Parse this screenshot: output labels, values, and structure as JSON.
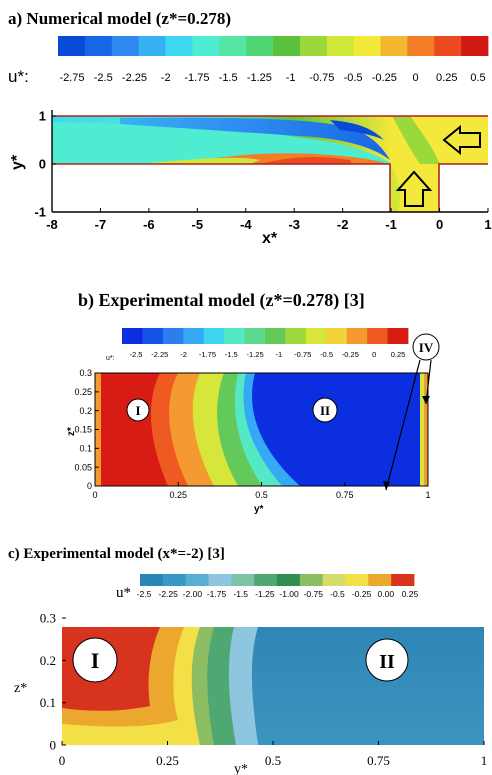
{
  "panels": [
    {
      "title": "a) Numerical model (z*=0.278)",
      "colorbar": {
        "label": "u*:",
        "ticks": [
          "-2.75",
          "-2.5",
          "-2.25",
          "-2",
          "-1.75",
          "-1.5",
          "-1.25",
          "-1",
          "-0.75",
          "-0.5",
          "-0.25",
          "0",
          "0.25",
          "0.5"
        ],
        "colors": [
          "#0a4ad8",
          "#1666e6",
          "#2d88f0",
          "#36b2f4",
          "#3ed9f0",
          "#4eecd0",
          "#55e6a6",
          "#4fd573",
          "#5cc23e",
          "#9bd83a",
          "#cfe838",
          "#f4e83a",
          "#f4b730",
          "#f47e27",
          "#ea4a1d",
          "#d11a14"
        ]
      },
      "x_axis": {
        "label": "x*",
        "ticks": [
          "-8",
          "-7",
          "-6",
          "-5",
          "-4",
          "-3",
          "-2",
          "-1",
          "0",
          "1"
        ]
      },
      "y_axis": {
        "label": "y*",
        "ticks": [
          "-1",
          "0",
          "1"
        ]
      }
    },
    {
      "title": "b) Experimental model (z*=0.278) [3]",
      "colorbar": {
        "label": "u*:",
        "ticks": [
          "-2.5",
          "-2.25",
          "-2",
          "-1.75",
          "-1.5",
          "-1.25",
          "-1",
          "-0.75",
          "-0.5",
          "-0.25",
          "0",
          "0.25"
        ],
        "colors": [
          "#0a2ee0",
          "#1452ea",
          "#2c7df0",
          "#36a9f4",
          "#3ed4f0",
          "#55e8c4",
          "#5cd98e",
          "#63c95a",
          "#9dd83c",
          "#d6e63a",
          "#f4d23a",
          "#f49a30",
          "#ee5a22",
          "#d81c14"
        ]
      },
      "x_axis": {
        "label": "y*",
        "ticks": [
          "0",
          "0.25",
          "0.5",
          "0.75",
          "1"
        ]
      },
      "y_axis": {
        "label": "z*",
        "ticks": [
          "0",
          "0.05",
          "0.1",
          "0.15",
          "0.2",
          "0.25",
          "0.3"
        ]
      },
      "regions": [
        "I",
        "II",
        "IV"
      ]
    },
    {
      "title": "c) Experimental model (x*=-2) [3]",
      "colorbar": {
        "label": "u*",
        "ticks": [
          "-2.5",
          "-2.25",
          "-2.00",
          "-1.75",
          "-1.5",
          "-1.25",
          "-1.00",
          "-0.75",
          "-0.5",
          "-0.25",
          "0.00",
          "0.25"
        ],
        "colors": [
          "#2a86b8",
          "#3a98c4",
          "#5aaed4",
          "#8ec6e0",
          "#7cc2a6",
          "#4fa872",
          "#2f8f52",
          "#8cbd62",
          "#d6dc6a",
          "#f2e046",
          "#eca82e",
          "#d8331f"
        ]
      },
      "x_axis": {
        "label": "y*",
        "ticks": [
          "0",
          "0.25",
          "0.5",
          "0.75",
          "1"
        ]
      },
      "y_axis": {
        "label": "z*",
        "ticks": [
          "0",
          "0.1",
          "0.2",
          "0.3"
        ]
      },
      "regions": [
        "I",
        "II"
      ]
    }
  ],
  "chart_data": [
    {
      "type": "heatmap",
      "title": "a) Numerical model (z*=0.278)",
      "variable": "u*",
      "xlabel": "x*",
      "ylabel": "y*",
      "xlim": [
        -8,
        1
      ],
      "ylim": [
        -1,
        1
      ],
      "color_range": [
        -2.75,
        0.5
      ],
      "notes": [
        "main channel 0<=y*<=1 from x*=-8 to x*=1",
        "side inlet -1<=x*<=0 for y*<0",
        "inflow arrows from right and from bottom"
      ]
    },
    {
      "type": "heatmap",
      "title": "b) Experimental model (z*=0.278) [3]",
      "variable": "u*",
      "xlabel": "y*",
      "ylabel": "z*",
      "xlim": [
        0,
        1
      ],
      "ylim": [
        0,
        0.3
      ],
      "color_range": [
        -2.5,
        0.25
      ],
      "annotations": [
        "I",
        "II",
        "IV"
      ]
    },
    {
      "type": "heatmap",
      "title": "c) Experimental model (x*=-2) [3]",
      "variable": "u*",
      "xlabel": "y*",
      "ylabel": "z*",
      "xlim": [
        0,
        1
      ],
      "ylim": [
        0,
        0.3
      ],
      "color_range": [
        -2.5,
        0.25
      ],
      "annotations": [
        "I",
        "II"
      ]
    }
  ]
}
